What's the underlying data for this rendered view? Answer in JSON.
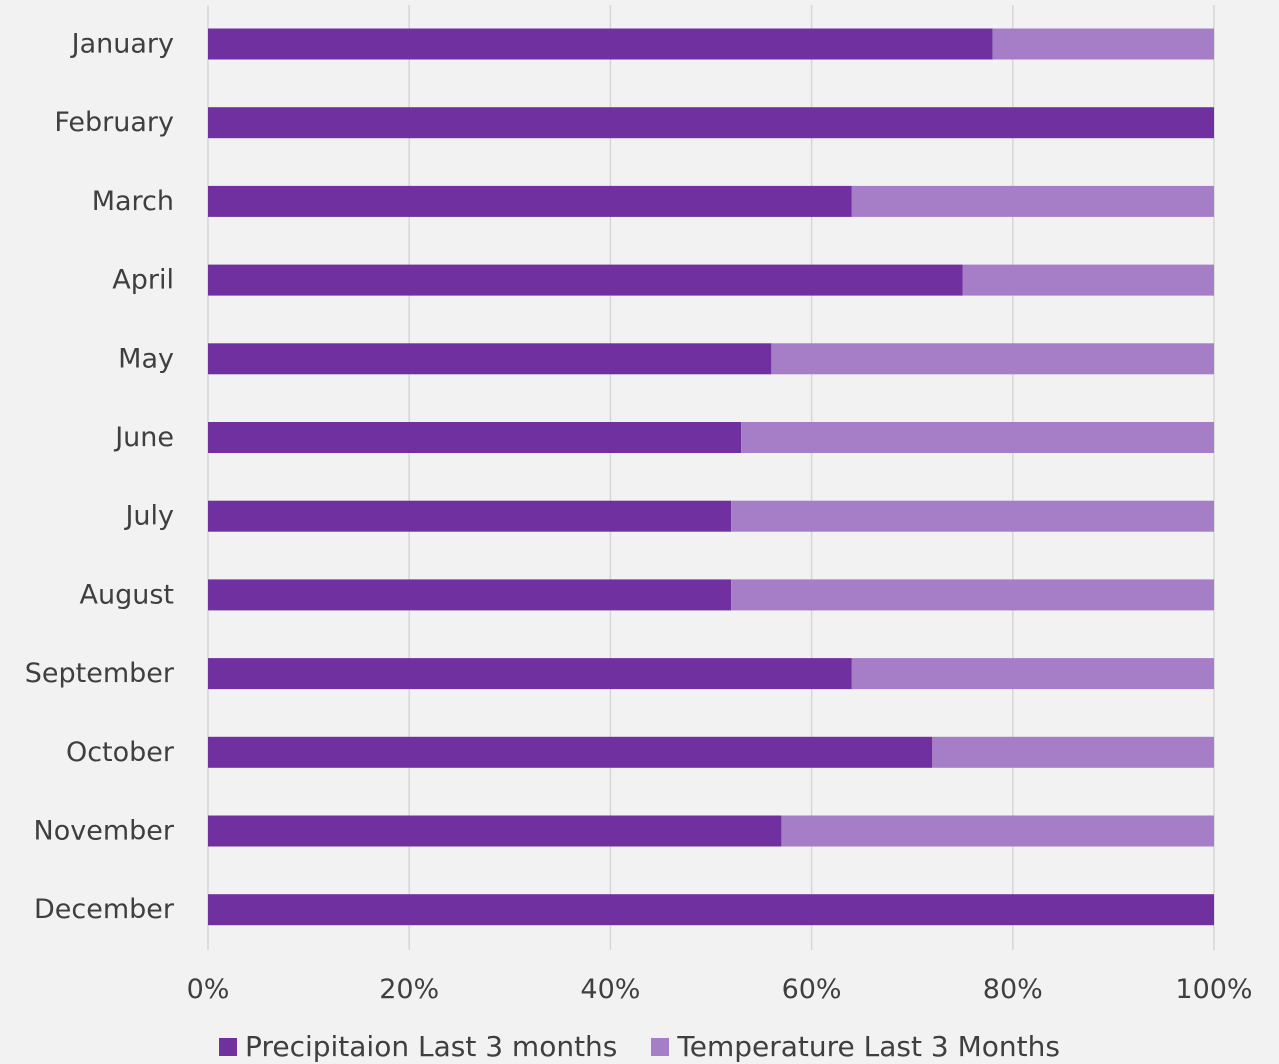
{
  "chart_data": {
    "type": "bar",
    "orientation": "horizontal",
    "stacked": "percent",
    "categories": [
      "January",
      "February",
      "March",
      "April",
      "May",
      "June",
      "July",
      "August",
      "September",
      "October",
      "November",
      "December"
    ],
    "series": [
      {
        "name": "Precipitaion Last 3 months",
        "color": "#7030a0",
        "values": [
          78,
          100,
          64,
          75,
          56,
          53,
          52,
          52,
          64,
          72,
          57,
          100
        ]
      },
      {
        "name": "Temperature Last 3 Months",
        "color": "#a67ec8",
        "values": [
          22,
          0,
          36,
          25,
          44,
          47,
          48,
          48,
          36,
          28,
          43,
          0
        ]
      }
    ],
    "xlim": [
      0,
      100
    ],
    "x_ticks": [
      "0%",
      "20%",
      "40%",
      "60%",
      "80%",
      "100%"
    ],
    "grid": "vertical",
    "legend": "bottom"
  }
}
